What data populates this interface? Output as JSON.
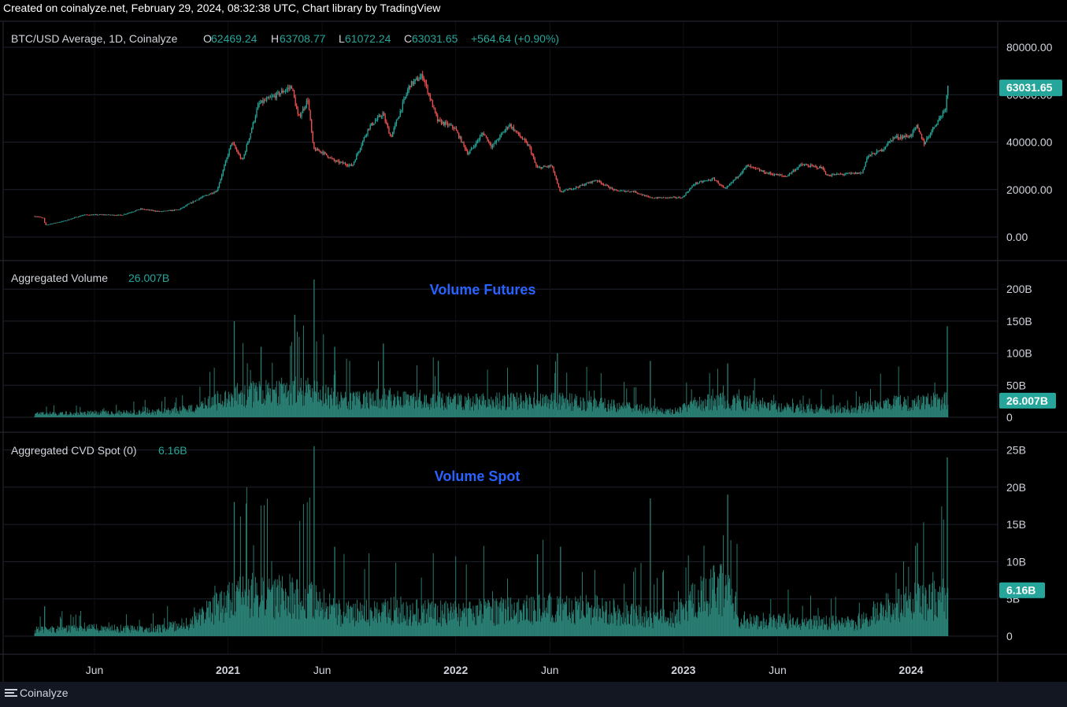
{
  "header": {
    "text": "Created on coinalyze.net, February 29, 2024, 08:32:38 UTC, Chart library by TradingView"
  },
  "footer": {
    "brand": "Coinalyze"
  },
  "colors": {
    "background": "#000000",
    "grid": "#1e222d",
    "up": "#26a69a",
    "down": "#ef5350",
    "volume": "#2a7f74",
    "annotation": "#2962ff",
    "text": "#d1d4dc"
  },
  "chart_data": [
    {
      "type": "candlestick",
      "title": "BTC/USD Average, 1D, Coinalyze",
      "ohlc": {
        "o_label": "O",
        "o": "62469.24",
        "h_label": "H",
        "h": "63708.77",
        "l_label": "L",
        "l": "61072.24",
        "c_label": "C",
        "c": "63031.65",
        "change": "+564.64 (+0.90%)"
      },
      "last_price_label": "63031.65",
      "ylim": [
        0,
        80000
      ],
      "y_ticks": [
        "80000.00",
        "60000.00",
        "40000.00",
        "20000.00",
        "0.00"
      ],
      "x_ticks": [
        "Jun",
        "2021",
        "Jun",
        "2022",
        "Jun",
        "2023",
        "Jun",
        "2024"
      ],
      "price_path": [
        {
          "x": "2020-03-01",
          "y": 8700
        },
        {
          "x": "2020-03-12",
          "y": 7900
        },
        {
          "x": "2020-03-15",
          "y": 5000
        },
        {
          "x": "2020-04-15",
          "y": 6800
        },
        {
          "x": "2020-05-15",
          "y": 9300
        },
        {
          "x": "2020-06-15",
          "y": 9400
        },
        {
          "x": "2020-07-15",
          "y": 9200
        },
        {
          "x": "2020-08-15",
          "y": 11800
        },
        {
          "x": "2020-09-15",
          "y": 10700
        },
        {
          "x": "2020-10-15",
          "y": 11500
        },
        {
          "x": "2020-11-15",
          "y": 16000
        },
        {
          "x": "2020-12-15",
          "y": 19500
        },
        {
          "x": "2021-01-08",
          "y": 40000
        },
        {
          "x": "2021-01-25",
          "y": 32000
        },
        {
          "x": "2021-02-20",
          "y": 56000
        },
        {
          "x": "2021-03-15",
          "y": 59000
        },
        {
          "x": "2021-04-14",
          "y": 63500
        },
        {
          "x": "2021-04-25",
          "y": 50000
        },
        {
          "x": "2021-05-10",
          "y": 58000
        },
        {
          "x": "2021-05-19",
          "y": 37000
        },
        {
          "x": "2021-06-01",
          "y": 36000
        },
        {
          "x": "2021-06-22",
          "y": 32000
        },
        {
          "x": "2021-07-20",
          "y": 30000
        },
        {
          "x": "2021-08-15",
          "y": 46000
        },
        {
          "x": "2021-09-07",
          "y": 52000
        },
        {
          "x": "2021-09-20",
          "y": 42000
        },
        {
          "x": "2021-10-20",
          "y": 64000
        },
        {
          "x": "2021-11-10",
          "y": 68000
        },
        {
          "x": "2021-12-04",
          "y": 49000
        },
        {
          "x": "2021-12-31",
          "y": 46000
        },
        {
          "x": "2022-01-22",
          "y": 35000
        },
        {
          "x": "2022-02-15",
          "y": 44000
        },
        {
          "x": "2022-03-01",
          "y": 38000
        },
        {
          "x": "2022-03-29",
          "y": 47500
        },
        {
          "x": "2022-04-30",
          "y": 38000
        },
        {
          "x": "2022-05-12",
          "y": 29000
        },
        {
          "x": "2022-06-05",
          "y": 30000
        },
        {
          "x": "2022-06-18",
          "y": 19000
        },
        {
          "x": "2022-07-15",
          "y": 21000
        },
        {
          "x": "2022-08-15",
          "y": 24000
        },
        {
          "x": "2022-09-15",
          "y": 19500
        },
        {
          "x": "2022-10-15",
          "y": 19200
        },
        {
          "x": "2022-11-09",
          "y": 16500
        },
        {
          "x": "2022-12-31",
          "y": 16600
        },
        {
          "x": "2023-01-20",
          "y": 22500
        },
        {
          "x": "2023-02-20",
          "y": 24500
        },
        {
          "x": "2023-03-10",
          "y": 20000
        },
        {
          "x": "2023-04-14",
          "y": 30000
        },
        {
          "x": "2023-05-15",
          "y": 27000
        },
        {
          "x": "2023-06-15",
          "y": 25500
        },
        {
          "x": "2023-07-10",
          "y": 30500
        },
        {
          "x": "2023-08-15",
          "y": 29000
        },
        {
          "x": "2023-08-18",
          "y": 26000
        },
        {
          "x": "2023-09-15",
          "y": 26500
        },
        {
          "x": "2023-10-15",
          "y": 27000
        },
        {
          "x": "2023-10-24",
          "y": 34000
        },
        {
          "x": "2023-11-15",
          "y": 36500
        },
        {
          "x": "2023-12-05",
          "y": 42000
        },
        {
          "x": "2023-12-31",
          "y": 42500
        },
        {
          "x": "2024-01-11",
          "y": 46500
        },
        {
          "x": "2024-01-23",
          "y": 39500
        },
        {
          "x": "2024-02-10",
          "y": 47500
        },
        {
          "x": "2024-02-20",
          "y": 51500
        },
        {
          "x": "2024-02-26",
          "y": 54500
        },
        {
          "x": "2024-02-29",
          "y": 63031
        }
      ]
    },
    {
      "type": "bar",
      "title": "Aggregated Volume",
      "last_value": "26.007B",
      "annotation": "Volume Futures",
      "ylim": [
        0,
        215
      ],
      "y_unit": "B",
      "y_ticks": [
        "200B",
        "150B",
        "100B",
        "50B",
        "0"
      ],
      "last_label": "26.007B",
      "base_level": [
        {
          "x": "2020-03-01",
          "y": 6
        },
        {
          "x": "2020-06-01",
          "y": 8
        },
        {
          "x": "2020-09-01",
          "y": 9
        },
        {
          "x": "2020-11-01",
          "y": 15
        },
        {
          "x": "2021-01-10",
          "y": 40
        },
        {
          "x": "2021-03-01",
          "y": 45
        },
        {
          "x": "2021-05-15",
          "y": 50
        },
        {
          "x": "2021-07-01",
          "y": 30
        },
        {
          "x": "2021-10-01",
          "y": 35
        },
        {
          "x": "2022-01-01",
          "y": 28
        },
        {
          "x": "2022-06-15",
          "y": 30
        },
        {
          "x": "2022-09-01",
          "y": 22
        },
        {
          "x": "2022-12-15",
          "y": 10
        },
        {
          "x": "2023-01-20",
          "y": 25
        },
        {
          "x": "2023-03-15",
          "y": 30
        },
        {
          "x": "2023-07-01",
          "y": 16
        },
        {
          "x": "2023-10-01",
          "y": 15
        },
        {
          "x": "2023-12-01",
          "y": 25
        },
        {
          "x": "2024-02-29",
          "y": 30
        }
      ],
      "peaks": [
        {
          "x": "2021-01-11",
          "y": 150
        },
        {
          "x": "2021-02-23",
          "y": 110
        },
        {
          "x": "2021-04-18",
          "y": 160
        },
        {
          "x": "2021-05-19",
          "y": 215
        },
        {
          "x": "2021-06-21",
          "y": 110
        },
        {
          "x": "2021-09-07",
          "y": 115
        },
        {
          "x": "2021-12-04",
          "y": 88
        },
        {
          "x": "2022-05-12",
          "y": 82
        },
        {
          "x": "2022-06-13",
          "y": 100
        },
        {
          "x": "2022-11-09",
          "y": 88
        },
        {
          "x": "2023-03-13",
          "y": 84
        },
        {
          "x": "2024-02-28",
          "y": 142
        }
      ]
    },
    {
      "type": "bar",
      "title": "Aggregated CVD Spot (0)",
      "last_value": "6.16B",
      "annotation": "Volume Spot",
      "ylim": [
        0,
        26
      ],
      "y_unit": "B",
      "y_ticks": [
        "25B",
        "20B",
        "15B",
        "10B",
        "5B",
        "0"
      ],
      "last_label": "6.16B",
      "base_level": [
        {
          "x": "2020-03-01",
          "y": 1
        },
        {
          "x": "2020-06-01",
          "y": 1.2
        },
        {
          "x": "2020-09-01",
          "y": 1.1
        },
        {
          "x": "2020-11-01",
          "y": 2
        },
        {
          "x": "2021-01-10",
          "y": 6
        },
        {
          "x": "2021-03-01",
          "y": 6.5
        },
        {
          "x": "2021-05-15",
          "y": 6
        },
        {
          "x": "2021-07-01",
          "y": 3.5
        },
        {
          "x": "2021-10-01",
          "y": 4
        },
        {
          "x": "2022-01-01",
          "y": 3.5
        },
        {
          "x": "2022-06-15",
          "y": 4.5
        },
        {
          "x": "2022-09-01",
          "y": 4
        },
        {
          "x": "2022-12-15",
          "y": 2.5
        },
        {
          "x": "2023-01-20",
          "y": 6
        },
        {
          "x": "2023-03-15",
          "y": 8
        },
        {
          "x": "2023-04-01",
          "y": 2.5
        },
        {
          "x": "2023-10-01",
          "y": 2
        },
        {
          "x": "2023-12-01",
          "y": 5
        },
        {
          "x": "2024-02-29",
          "y": 6
        }
      ],
      "peaks": [
        {
          "x": "2020-03-13",
          "y": 4
        },
        {
          "x": "2021-01-11",
          "y": 18
        },
        {
          "x": "2021-05-19",
          "y": 25.5
        },
        {
          "x": "2021-06-21",
          "y": 12
        },
        {
          "x": "2022-05-12",
          "y": 11
        },
        {
          "x": "2022-06-18",
          "y": 12
        },
        {
          "x": "2022-11-09",
          "y": 18.5
        },
        {
          "x": "2023-03-13",
          "y": 19
        },
        {
          "x": "2024-01-11",
          "y": 12.5
        },
        {
          "x": "2024-02-28",
          "y": 24
        }
      ]
    }
  ]
}
